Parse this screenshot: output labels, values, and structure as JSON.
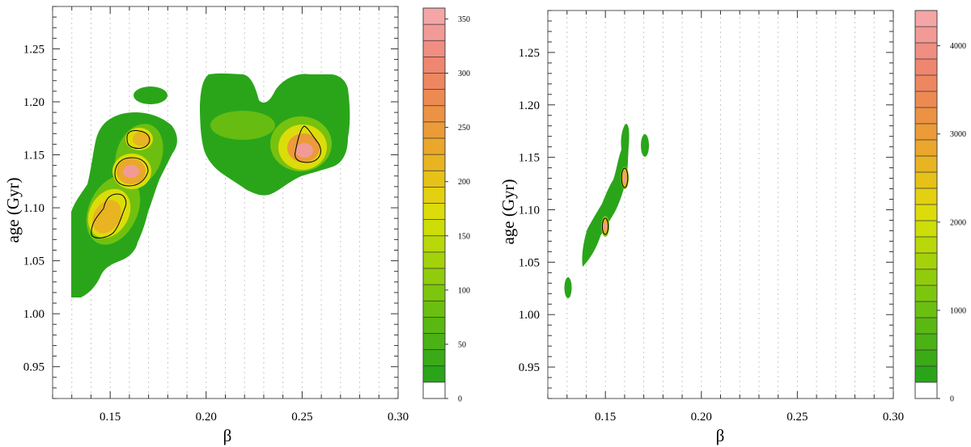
{
  "chart_data": [
    {
      "type": "heatmap",
      "title": "",
      "xlabel": "β",
      "ylabel": "age (Gyr)",
      "xlim": [
        0.12,
        0.3
      ],
      "ylim": [
        0.92,
        1.29
      ],
      "x_ticks": [
        0.15,
        0.2,
        0.25,
        0.3
      ],
      "x_tick_labels": [
        "0.15",
        "0.20",
        "0.25",
        "0.30"
      ],
      "y_ticks": [
        0.95,
        1.0,
        1.05,
        1.1,
        1.15,
        1.2,
        1.25
      ],
      "y_tick_labels": [
        "0.95",
        "1.00",
        "1.05",
        "1.10",
        "1.15",
        "1.20",
        "1.25"
      ],
      "colorbar": {
        "range": [
          0,
          360
        ],
        "ticks": [
          0,
          50,
          100,
          150,
          200,
          250,
          300,
          350
        ],
        "tick_labels": [
          "0",
          "50",
          "100",
          "150",
          "200",
          "250",
          "300",
          "350"
        ],
        "colors": [
          "#ffffff",
          "#2aa51a",
          "#3aab16",
          "#4ab214",
          "#5ab812",
          "#6bbf10",
          "#7dc60e",
          "#90cc0c",
          "#a4d20a",
          "#b8d80a",
          "#ccdd08",
          "#dcdc0a",
          "#e3d010",
          "#e6c218",
          "#e8b422",
          "#eaa72c",
          "#eb9b38",
          "#ec9244",
          "#ed8a52",
          "#ee8660",
          "#ef8670",
          "#f08e82",
          "#f29a96",
          "#f4a6a6"
        ]
      },
      "peaks": [
        {
          "beta": 0.147,
          "age": 1.092,
          "value": 215
        },
        {
          "beta": 0.155,
          "age": 1.136,
          "value": 345
        },
        {
          "beta": 0.162,
          "age": 1.165,
          "value": 215
        },
        {
          "beta": 0.251,
          "age": 1.156,
          "value": 295
        },
        {
          "beta": 0.22,
          "age": 1.177,
          "value": 135
        }
      ]
    },
    {
      "type": "heatmap",
      "title": "",
      "xlabel": "β",
      "ylabel": "age (Gyr)",
      "xlim": [
        0.12,
        0.3
      ],
      "ylim": [
        0.92,
        1.29
      ],
      "x_ticks": [
        0.15,
        0.2,
        0.25,
        0.3
      ],
      "x_tick_labels": [
        "0.15",
        "0.20",
        "0.25",
        "0.30"
      ],
      "y_ticks": [
        0.95,
        1.0,
        1.05,
        1.1,
        1.15,
        1.2,
        1.25
      ],
      "y_tick_labels": [
        "0.95",
        "1.00",
        "1.05",
        "1.10",
        "1.15",
        "1.20",
        "1.25"
      ],
      "colorbar": {
        "range": [
          0,
          4400
        ],
        "ticks": [
          0,
          1000,
          2000,
          3000,
          4000
        ],
        "tick_labels": [
          "0",
          "1000",
          "2000",
          "3000",
          "4000"
        ],
        "colors": [
          "#ffffff",
          "#2aa51a",
          "#3aab16",
          "#4ab214",
          "#5ab812",
          "#6bbf10",
          "#7dc60e",
          "#90cc0c",
          "#a4d20a",
          "#b8d80a",
          "#ccdd08",
          "#dcdc0a",
          "#e3d010",
          "#e6c218",
          "#e8b422",
          "#eaa72c",
          "#eb9b38",
          "#ec9244",
          "#ed8a52",
          "#ee8660",
          "#ef8670",
          "#f08e82",
          "#f29a96",
          "#f4a6a6"
        ]
      },
      "peaks": [
        {
          "beta": 0.16,
          "age": 1.133,
          "value": 3100
        },
        {
          "beta": 0.15,
          "age": 1.085,
          "value": 3000
        },
        {
          "beta": 0.17,
          "age": 1.163,
          "value": 1500
        },
        {
          "beta": 0.13,
          "age": 1.025,
          "value": 1000
        }
      ]
    }
  ]
}
